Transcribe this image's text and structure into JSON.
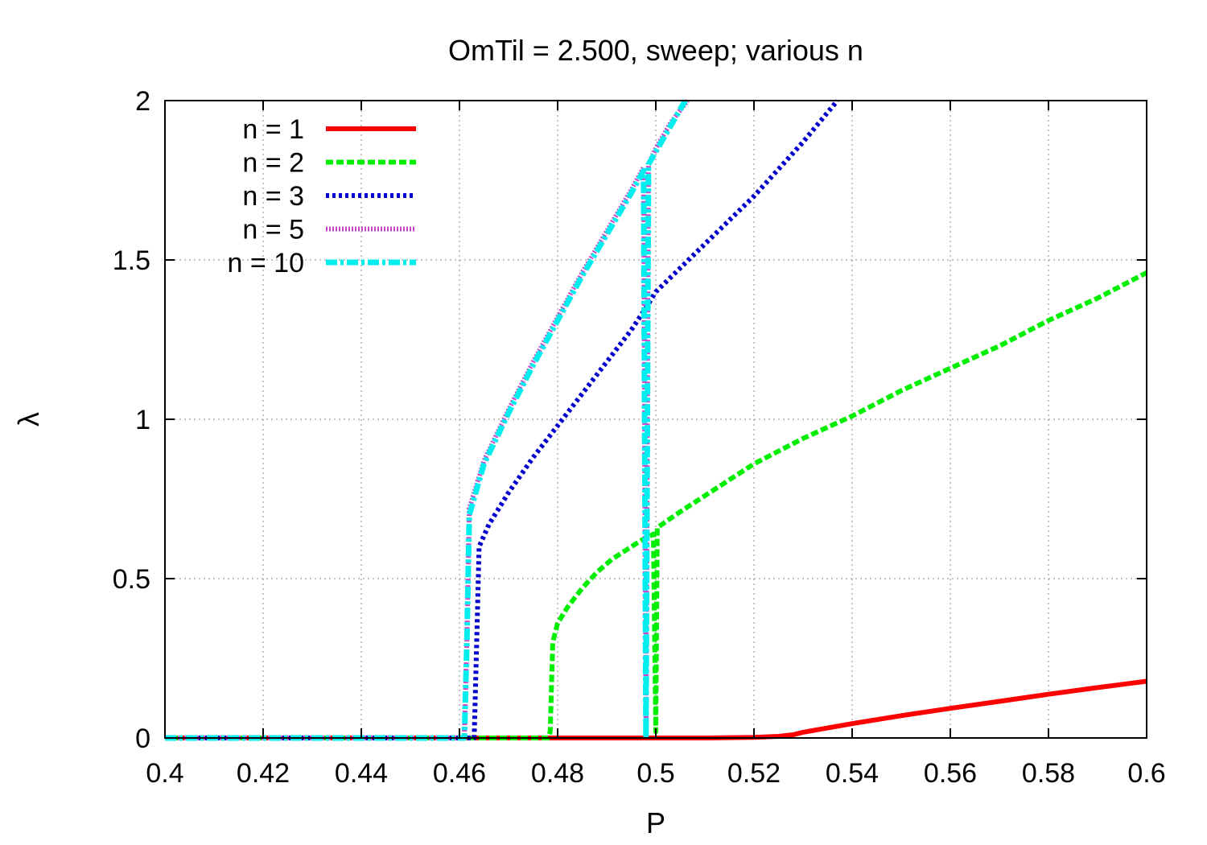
{
  "chart_data": {
    "type": "line",
    "title": "OmTil = 2.500, sweep; various n",
    "xlabel": "P",
    "ylabel": "λ",
    "xlim": [
      0.4,
      0.6
    ],
    "ylim": [
      0,
      2
    ],
    "xticks": [
      0.4,
      0.42,
      0.44,
      0.46,
      0.48,
      0.5,
      0.52,
      0.54,
      0.56,
      0.58,
      0.6
    ],
    "xtick_labels": [
      "0.4",
      "0.42",
      "0.44",
      "0.46",
      "0.48",
      "0.5",
      "0.52",
      "0.54",
      "0.56",
      "0.58",
      "0.6"
    ],
    "yticks": [
      0,
      0.5,
      1,
      1.5,
      2
    ],
    "ytick_labels": [
      "0",
      "0.5",
      "1",
      "1.5",
      "2"
    ],
    "grid": true,
    "legend_position": "top-left",
    "series": [
      {
        "name": "n = 1",
        "color": "#ff0000",
        "style": "solid",
        "x": [
          0.4,
          0.5,
          0.51,
          0.52,
          0.525,
          0.528,
          0.53,
          0.54,
          0.55,
          0.56,
          0.57,
          0.58,
          0.59,
          0.6
        ],
        "y": [
          0,
          0,
          0,
          0.002,
          0.005,
          0.01,
          0.018,
          0.045,
          0.07,
          0.093,
          0.115,
          0.137,
          0.158,
          0.178
        ]
      },
      {
        "name": "n = 2",
        "color": "#00ee00",
        "style": "dashed",
        "x": [
          0.4,
          0.478,
          0.4785,
          0.479,
          0.48,
          0.482,
          0.485,
          0.488,
          0.491,
          0.494,
          0.497,
          0.499,
          0.4995,
          0.5,
          0.5003,
          0.505,
          0.51,
          0.52,
          0.53,
          0.54,
          0.55,
          0.56,
          0.57,
          0.58,
          0.59,
          0.6
        ],
        "y": [
          0,
          0,
          0.02,
          0.3,
          0.36,
          0.41,
          0.47,
          0.52,
          0.56,
          0.59,
          0.62,
          0.635,
          0.64,
          0.02,
          0.66,
          0.71,
          0.76,
          0.86,
          0.94,
          1.01,
          1.09,
          1.16,
          1.23,
          1.31,
          1.38,
          1.46
        ]
      },
      {
        "name": "n = 3",
        "color": "#0000cc",
        "style": "dotted",
        "x": [
          0.4,
          0.463,
          0.4635,
          0.464,
          0.466,
          0.47,
          0.475,
          0.48,
          0.485,
          0.49,
          0.495,
          0.498,
          0.5,
          0.51,
          0.52,
          0.53,
          0.537
        ],
        "y": [
          0,
          0,
          0.3,
          0.6,
          0.67,
          0.77,
          0.88,
          0.98,
          1.08,
          1.18,
          1.28,
          1.35,
          1.4,
          1.55,
          1.7,
          1.87,
          2.0
        ]
      },
      {
        "name": "n = 5",
        "color": "#cc44cc",
        "style": "dotted-dense",
        "x": [
          0.4,
          0.461,
          0.4615,
          0.462,
          0.465,
          0.47,
          0.475,
          0.48,
          0.485,
          0.49,
          0.495,
          0.4975,
          0.498,
          0.4985,
          0.5,
          0.503,
          0.5065
        ],
        "y": [
          0,
          0,
          0.3,
          0.72,
          0.87,
          1.03,
          1.18,
          1.32,
          1.46,
          1.59,
          1.72,
          1.79,
          0.0,
          1.8,
          1.85,
          1.93,
          2.0
        ]
      },
      {
        "name": "n = 10",
        "color": "#00eeee",
        "style": "dash-dot",
        "x": [
          0.4,
          0.461,
          0.4615,
          0.462,
          0.465,
          0.47,
          0.475,
          0.48,
          0.485,
          0.49,
          0.495,
          0.4975,
          0.498,
          0.4985,
          0.5,
          0.503,
          0.506
        ],
        "y": [
          0,
          0,
          0.3,
          0.7,
          0.86,
          1.02,
          1.17,
          1.31,
          1.45,
          1.58,
          1.71,
          1.78,
          0.0,
          1.8,
          1.84,
          1.92,
          2.0
        ]
      }
    ]
  }
}
